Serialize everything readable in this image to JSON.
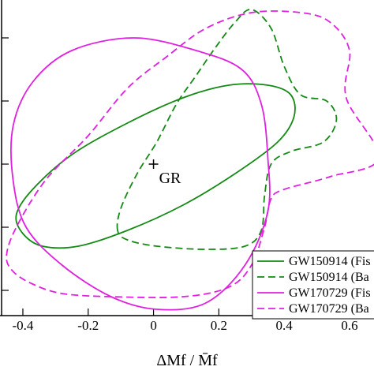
{
  "chart_data": {
    "type": "contour",
    "x_label": "ΔMf / M̄f",
    "xlim": [
      -0.47,
      0.675
    ],
    "ylim": [
      -0.48,
      0.52
    ],
    "xticks": [
      -0.4,
      -0.2,
      0,
      0.2,
      0.4,
      0.6
    ],
    "yticks": [
      -0.4,
      -0.2,
      0,
      0.2,
      0.4
    ],
    "show_ytick_labels": false,
    "annotations": [
      {
        "text": "GR",
        "x": 0,
        "y": 0
      }
    ],
    "legend": "lower right",
    "series": [
      {
        "name": "GW150914 (Fis",
        "color": "#138a13",
        "dashed": false,
        "x": [
          -0.42,
          -0.37,
          -0.25,
          -0.08,
          0.09,
          0.23,
          0.35,
          0.42,
          0.43,
          0.38,
          0.25,
          0.09,
          -0.08,
          -0.23,
          -0.34,
          -0.4
        ],
        "y": [
          -0.16,
          -0.08,
          0.03,
          0.13,
          0.21,
          0.25,
          0.25,
          0.22,
          0.15,
          0.07,
          -0.03,
          -0.13,
          -0.21,
          -0.26,
          -0.26,
          -0.22
        ]
      },
      {
        "name": "GW150914 (Ba",
        "color": "#138a13",
        "dashed": true,
        "x": [
          -0.11,
          -0.1,
          -0.05,
          0.01,
          0.07,
          0.13,
          0.19,
          0.25,
          0.3,
          0.36,
          0.4,
          0.45,
          0.53,
          0.56,
          0.52,
          0.42,
          0.36,
          0.34,
          0.33,
          0.28,
          0.16,
          0.01,
          -0.08
        ],
        "y": [
          -0.21,
          -0.14,
          -0.03,
          0.07,
          0.19,
          0.28,
          0.37,
          0.45,
          0.49,
          0.43,
          0.31,
          0.22,
          0.2,
          0.14,
          0.07,
          0.04,
          0.0,
          -0.1,
          -0.21,
          -0.26,
          -0.27,
          -0.26,
          -0.24
        ]
      },
      {
        "name": "GW170729 (Fis",
        "color": "#e020e0",
        "dashed": false,
        "x": [
          -0.06,
          0.13,
          0.27,
          0.33,
          0.35,
          0.35,
          0.28,
          0.16,
          0.01,
          -0.13,
          -0.28,
          -0.39,
          -0.43,
          -0.43,
          -0.37,
          -0.25
        ],
        "y": [
          0.4,
          0.36,
          0.3,
          0.19,
          0.02,
          -0.15,
          -0.32,
          -0.44,
          -0.46,
          -0.42,
          -0.32,
          -0.2,
          -0.05,
          0.12,
          0.26,
          0.36
        ]
      },
      {
        "name": "GW170729 (Ba",
        "color": "#e020e0",
        "dashed": true,
        "x": [
          -0.45,
          -0.42,
          -0.33,
          -0.2,
          -0.08,
          0.04,
          0.16,
          0.3,
          0.45,
          0.54,
          0.6,
          0.59,
          0.69,
          0.54,
          0.4,
          0.36,
          0.34,
          0.3,
          0.23,
          0.09,
          -0.13,
          -0.28,
          -0.37,
          -0.43
        ],
        "y": [
          -0.29,
          -0.2,
          -0.05,
          0.09,
          0.24,
          0.34,
          0.43,
          0.48,
          0.48,
          0.45,
          0.36,
          0.21,
          0.02,
          -0.04,
          -0.08,
          -0.11,
          -0.2,
          -0.32,
          -0.39,
          -0.42,
          -0.42,
          -0.41,
          -0.38,
          -0.34
        ]
      }
    ]
  }
}
